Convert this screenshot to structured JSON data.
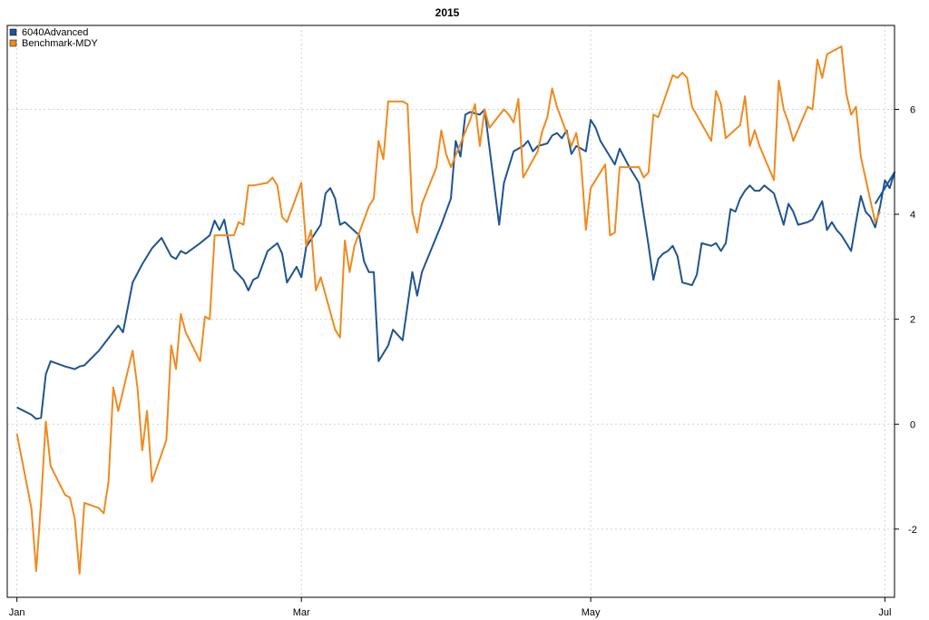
{
  "chart_data": {
    "type": "line",
    "title": "2015",
    "xlabel": "",
    "ylabel": "",
    "grid": true,
    "legend_position": "top-left",
    "xlim": [
      "2014-12-31",
      "2015-07-03"
    ],
    "ylim": [
      -3.3,
      7.6
    ],
    "x_ticks": [
      {
        "date": "2015-01-02",
        "label": "Jan"
      },
      {
        "date": "2015-03-02",
        "label": "Mar"
      },
      {
        "date": "2015-05-01",
        "label": "May"
      },
      {
        "date": "2015-07-01",
        "label": "Jul"
      }
    ],
    "y_ticks": [
      {
        "value": -2,
        "label": "-2"
      },
      {
        "value": 0,
        "label": "0"
      },
      {
        "value": 2,
        "label": "2"
      },
      {
        "value": 4,
        "label": "4"
      },
      {
        "value": 6,
        "label": "6"
      }
    ],
    "series": [
      {
        "name": "6040Advanced",
        "color": "#1f5590",
        "points": [
          [
            "2015-01-02",
            0.32
          ],
          [
            "2015-01-05",
            0.18
          ],
          [
            "2015-01-06",
            0.1
          ],
          [
            "2015-01-07",
            0.12
          ],
          [
            "2015-01-08",
            0.95
          ],
          [
            "2015-01-09",
            1.2
          ],
          [
            "2015-01-12",
            1.1
          ],
          [
            "2015-01-14",
            1.05
          ],
          [
            "2015-01-15",
            1.1
          ],
          [
            "2015-01-16",
            1.12
          ],
          [
            "2015-01-19",
            1.4
          ],
          [
            "2015-01-23",
            1.88
          ],
          [
            "2015-01-24",
            1.75
          ],
          [
            "2015-01-26",
            2.7
          ],
          [
            "2015-01-28",
            3.05
          ],
          [
            "2015-01-30",
            3.35
          ],
          [
            "2015-02-01",
            3.55
          ],
          [
            "2015-02-03",
            3.2
          ],
          [
            "2015-02-04",
            3.15
          ],
          [
            "2015-02-05",
            3.3
          ],
          [
            "2015-02-06",
            3.25
          ],
          [
            "2015-02-09",
            3.45
          ],
          [
            "2015-02-11",
            3.6
          ],
          [
            "2015-02-12",
            3.88
          ],
          [
            "2015-02-13",
            3.7
          ],
          [
            "2015-02-14",
            3.9
          ],
          [
            "2015-02-16",
            2.95
          ],
          [
            "2015-02-18",
            2.75
          ],
          [
            "2015-02-19",
            2.55
          ],
          [
            "2015-02-20",
            2.75
          ],
          [
            "2015-02-21",
            2.8
          ],
          [
            "2015-02-23",
            3.3
          ],
          [
            "2015-02-25",
            3.45
          ],
          [
            "2015-02-26",
            3.25
          ],
          [
            "2015-02-27",
            2.7
          ],
          [
            "2015-03-01",
            3.0
          ],
          [
            "2015-03-02",
            2.8
          ],
          [
            "2015-03-03",
            3.38
          ],
          [
            "2015-03-06",
            3.8
          ],
          [
            "2015-03-07",
            4.4
          ],
          [
            "2015-03-08",
            4.5
          ],
          [
            "2015-03-09",
            4.3
          ],
          [
            "2015-03-10",
            3.8
          ],
          [
            "2015-03-11",
            3.85
          ],
          [
            "2015-03-14",
            3.6
          ],
          [
            "2015-03-15",
            3.1
          ],
          [
            "2015-03-16",
            2.9
          ],
          [
            "2015-03-17",
            2.9
          ],
          [
            "2015-03-18",
            1.2
          ],
          [
            "2015-03-20",
            1.5
          ],
          [
            "2015-03-21",
            1.8
          ],
          [
            "2015-03-23",
            1.6
          ],
          [
            "2015-03-25",
            2.9
          ],
          [
            "2015-03-26",
            2.45
          ],
          [
            "2015-03-27",
            2.9
          ],
          [
            "2015-03-31",
            3.8
          ],
          [
            "2015-04-02",
            4.3
          ],
          [
            "2015-04-03",
            5.4
          ],
          [
            "2015-04-04",
            5.1
          ],
          [
            "2015-04-05",
            5.9
          ],
          [
            "2015-04-06",
            5.95
          ],
          [
            "2015-04-08",
            5.9
          ],
          [
            "2015-04-09",
            6.0
          ],
          [
            "2015-04-12",
            3.8
          ],
          [
            "2015-04-13",
            4.6
          ],
          [
            "2015-04-14",
            4.9
          ],
          [
            "2015-04-15",
            5.2
          ],
          [
            "2015-04-16",
            5.25
          ],
          [
            "2015-04-17",
            5.3
          ],
          [
            "2015-04-18",
            5.4
          ],
          [
            "2015-04-19",
            5.2
          ],
          [
            "2015-04-20",
            5.3
          ],
          [
            "2015-04-22",
            5.35
          ],
          [
            "2015-04-23",
            5.5
          ],
          [
            "2015-04-24",
            5.55
          ],
          [
            "2015-04-25",
            5.45
          ],
          [
            "2015-04-26",
            5.6
          ],
          [
            "2015-04-27",
            5.15
          ],
          [
            "2015-04-28",
            5.3
          ],
          [
            "2015-04-29",
            5.25
          ],
          [
            "2015-04-30",
            5.2
          ],
          [
            "2015-05-01",
            5.8
          ],
          [
            "2015-05-02",
            5.65
          ],
          [
            "2015-05-03",
            5.4
          ],
          [
            "2015-05-05",
            5.1
          ],
          [
            "2015-05-06",
            4.95
          ],
          [
            "2015-05-07",
            5.25
          ],
          [
            "2015-05-09",
            4.9
          ],
          [
            "2015-05-11",
            4.6
          ],
          [
            "2015-05-13",
            3.4
          ],
          [
            "2015-05-14",
            2.75
          ],
          [
            "2015-05-15",
            3.15
          ],
          [
            "2015-05-16",
            3.25
          ],
          [
            "2015-05-17",
            3.3
          ],
          [
            "2015-05-18",
            3.4
          ],
          [
            "2015-05-19",
            3.2
          ],
          [
            "2015-05-20",
            2.7
          ],
          [
            "2015-05-22",
            2.65
          ],
          [
            "2015-05-23",
            2.85
          ],
          [
            "2015-05-24",
            3.45
          ],
          [
            "2015-05-26",
            3.4
          ],
          [
            "2015-05-27",
            3.45
          ],
          [
            "2015-05-28",
            3.3
          ],
          [
            "2015-05-29",
            3.45
          ],
          [
            "2015-05-30",
            4.1
          ],
          [
            "2015-05-31",
            4.05
          ],
          [
            "2015-06-01",
            4.3
          ],
          [
            "2015-06-02",
            4.45
          ],
          [
            "2015-06-03",
            4.55
          ],
          [
            "2015-06-04",
            4.45
          ],
          [
            "2015-06-05",
            4.45
          ],
          [
            "2015-06-06",
            4.55
          ],
          [
            "2015-06-08",
            4.4
          ],
          [
            "2015-06-10",
            3.8
          ],
          [
            "2015-06-11",
            4.2
          ],
          [
            "2015-06-12",
            4.05
          ],
          [
            "2015-06-13",
            3.8
          ],
          [
            "2015-06-15",
            3.85
          ],
          [
            "2015-06-16",
            3.9
          ],
          [
            "2015-06-18",
            4.25
          ],
          [
            "2015-06-19",
            3.7
          ],
          [
            "2015-06-20",
            3.85
          ],
          [
            "2015-06-21",
            3.7
          ],
          [
            "2015-06-22",
            3.6
          ],
          [
            "2015-06-24",
            3.3
          ],
          [
            "2015-06-25",
            3.85
          ],
          [
            "2015-06-26",
            4.35
          ],
          [
            "2015-06-27",
            4.05
          ],
          [
            "2015-06-28",
            3.95
          ],
          [
            "2015-06-29",
            3.75
          ],
          [
            "2015-06-30",
            4.15
          ],
          [
            "2015-07-01",
            4.65
          ],
          [
            "2015-07-02",
            4.5
          ],
          [
            "2015-07-03",
            4.8
          ],
          [
            "2015-06-29",
            4.2
          ]
        ]
      },
      {
        "name": "Benchmark-MDY",
        "color": "#f08a1e",
        "points": [
          [
            "2015-01-02",
            -0.18
          ],
          [
            "2015-01-05",
            -1.6
          ],
          [
            "2015-01-06",
            -2.8
          ],
          [
            "2015-01-07",
            -1.5
          ],
          [
            "2015-01-08",
            0.05
          ],
          [
            "2015-01-09",
            -0.8
          ],
          [
            "2015-01-12",
            -1.35
          ],
          [
            "2015-01-13",
            -1.4
          ],
          [
            "2015-01-14",
            -1.8
          ],
          [
            "2015-01-15",
            -2.85
          ],
          [
            "2015-01-16",
            -1.5
          ],
          [
            "2015-01-19",
            -1.6
          ],
          [
            "2015-01-20",
            -1.7
          ],
          [
            "2015-01-21",
            -1.1
          ],
          [
            "2015-01-22",
            0.7
          ],
          [
            "2015-01-23",
            0.25
          ],
          [
            "2015-01-26",
            1.4
          ],
          [
            "2015-01-27",
            0.7
          ],
          [
            "2015-01-28",
            -0.5
          ],
          [
            "2015-01-29",
            0.25
          ],
          [
            "2015-01-30",
            -1.1
          ],
          [
            "2015-02-02",
            -0.3
          ],
          [
            "2015-02-03",
            1.5
          ],
          [
            "2015-02-04",
            1.05
          ],
          [
            "2015-02-05",
            2.1
          ],
          [
            "2015-02-06",
            1.75
          ],
          [
            "2015-02-09",
            1.2
          ],
          [
            "2015-02-10",
            2.05
          ],
          [
            "2015-02-11",
            2.0
          ],
          [
            "2015-02-12",
            3.6
          ],
          [
            "2015-02-13",
            3.6
          ],
          [
            "2015-02-16",
            3.6
          ],
          [
            "2015-02-17",
            3.85
          ],
          [
            "2015-02-18",
            3.8
          ],
          [
            "2015-02-19",
            4.55
          ],
          [
            "2015-02-20",
            4.55
          ],
          [
            "2015-02-23",
            4.6
          ],
          [
            "2015-02-24",
            4.7
          ],
          [
            "2015-02-25",
            4.55
          ],
          [
            "2015-02-26",
            3.95
          ],
          [
            "2015-02-27",
            3.85
          ],
          [
            "2015-03-02",
            4.6
          ],
          [
            "2015-03-03",
            3.4
          ],
          [
            "2015-03-04",
            3.7
          ],
          [
            "2015-03-05",
            2.55
          ],
          [
            "2015-03-06",
            2.8
          ],
          [
            "2015-03-09",
            1.8
          ],
          [
            "2015-03-10",
            1.65
          ],
          [
            "2015-03-11",
            3.5
          ],
          [
            "2015-03-12",
            2.9
          ],
          [
            "2015-03-13",
            3.4
          ],
          [
            "2015-03-16",
            4.15
          ],
          [
            "2015-03-17",
            4.3
          ],
          [
            "2015-03-18",
            5.4
          ],
          [
            "2015-03-19",
            5.05
          ],
          [
            "2015-03-20",
            6.15
          ],
          [
            "2015-03-23",
            6.15
          ],
          [
            "2015-03-24",
            6.1
          ],
          [
            "2015-03-25",
            4.05
          ],
          [
            "2015-03-26",
            3.65
          ],
          [
            "2015-03-27",
            4.2
          ],
          [
            "2015-03-30",
            4.9
          ],
          [
            "2015-03-31",
            5.6
          ],
          [
            "2015-04-01",
            5.15
          ],
          [
            "2015-04-02",
            4.9
          ],
          [
            "2015-04-06",
            5.8
          ],
          [
            "2015-04-07",
            6.1
          ],
          [
            "2015-04-08",
            5.3
          ],
          [
            "2015-04-09",
            6.0
          ],
          [
            "2015-04-10",
            5.65
          ],
          [
            "2015-04-13",
            6.0
          ],
          [
            "2015-04-14",
            5.9
          ],
          [
            "2015-04-15",
            5.75
          ],
          [
            "2015-04-16",
            6.2
          ],
          [
            "2015-04-17",
            4.7
          ],
          [
            "2015-04-20",
            5.2
          ],
          [
            "2015-04-21",
            5.6
          ],
          [
            "2015-04-22",
            5.85
          ],
          [
            "2015-04-23",
            6.4
          ],
          [
            "2015-04-24",
            6.05
          ],
          [
            "2015-04-27",
            5.3
          ],
          [
            "2015-04-28",
            5.55
          ],
          [
            "2015-04-29",
            5.0
          ],
          [
            "2015-04-30",
            3.7
          ],
          [
            "2015-05-01",
            4.5
          ],
          [
            "2015-05-04",
            4.95
          ],
          [
            "2015-05-05",
            3.6
          ],
          [
            "2015-05-06",
            3.65
          ],
          [
            "2015-05-07",
            4.9
          ],
          [
            "2015-05-08",
            4.9
          ],
          [
            "2015-05-11",
            4.9
          ],
          [
            "2015-05-12",
            4.7
          ],
          [
            "2015-05-13",
            4.8
          ],
          [
            "2015-05-14",
            5.9
          ],
          [
            "2015-05-15",
            5.85
          ],
          [
            "2015-05-18",
            6.65
          ],
          [
            "2015-05-19",
            6.6
          ],
          [
            "2015-05-20",
            6.7
          ],
          [
            "2015-05-21",
            6.6
          ],
          [
            "2015-05-22",
            6.05
          ],
          [
            "2015-05-26",
            5.4
          ],
          [
            "2015-05-27",
            6.35
          ],
          [
            "2015-05-28",
            6.1
          ],
          [
            "2015-05-29",
            5.45
          ],
          [
            "2015-06-01",
            5.7
          ],
          [
            "2015-06-02",
            6.25
          ],
          [
            "2015-06-03",
            5.3
          ],
          [
            "2015-06-04",
            5.6
          ],
          [
            "2015-06-05",
            5.3
          ],
          [
            "2015-06-08",
            4.65
          ],
          [
            "2015-06-09",
            6.55
          ],
          [
            "2015-06-10",
            6.0
          ],
          [
            "2015-06-11",
            5.75
          ],
          [
            "2015-06-12",
            5.4
          ],
          [
            "2015-06-15",
            6.05
          ],
          [
            "2015-06-16",
            6.0
          ],
          [
            "2015-06-17",
            6.95
          ],
          [
            "2015-06-18",
            6.6
          ],
          [
            "2015-06-19",
            7.05
          ],
          [
            "2015-06-22",
            7.2
          ],
          [
            "2015-06-23",
            6.3
          ],
          [
            "2015-06-24",
            5.9
          ],
          [
            "2015-06-25",
            6.05
          ],
          [
            "2015-06-26",
            5.1
          ],
          [
            "2015-06-29",
            3.85
          ],
          [
            "2015-06-30",
            4.05
          ]
        ]
      }
    ]
  }
}
